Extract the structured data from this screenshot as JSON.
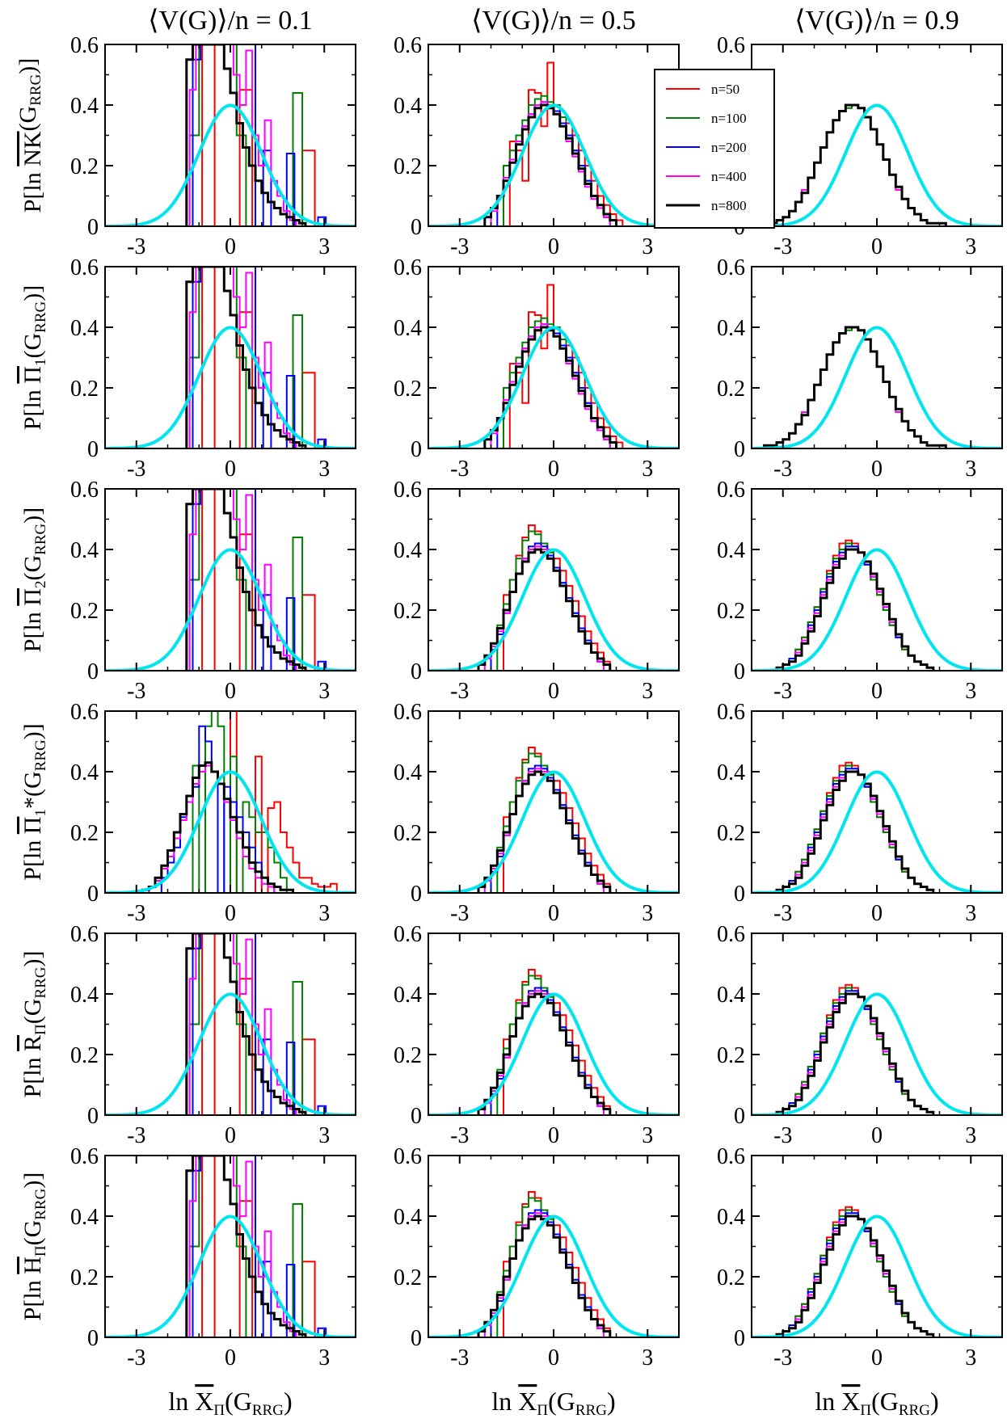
{
  "figure": {
    "column_titles": [
      "⟨V(G)⟩/n = 0.1",
      "⟨V(G)⟩/n = 0.5",
      "⟨V(G)⟩/n = 0.9"
    ],
    "row_labels": [
      {
        "pre": "P[ln ",
        "sym": "NK",
        "sub1": "",
        "post": "(G",
        "sub2": "RRG",
        "end": ")]"
      },
      {
        "pre": "P[ln ",
        "sym": "Π",
        "sub1": "1",
        "post": "(G",
        "sub2": "RRG",
        "end": ")]"
      },
      {
        "pre": "P[ln ",
        "sym": "Π",
        "sub1": "2",
        "post": "(G",
        "sub2": "RRG",
        "end": ")]"
      },
      {
        "pre": "P[ln ",
        "sym": "Π",
        "sub1": "1",
        "post": "*(G",
        "sub2": "RRG",
        "end": ")]"
      },
      {
        "pre": "P[ln ",
        "sym": "R",
        "sub1": "Π",
        "post": "(G",
        "sub2": "RRG",
        "end": ")]"
      },
      {
        "pre": "P[ln ",
        "sym": "H",
        "sub1": "Π",
        "post": "(G",
        "sub2": "RRG",
        "end": ")]"
      }
    ],
    "xlabel": {
      "pre": "ln ",
      "sym": "X",
      "sub1": "Π",
      "post": "(G",
      "sub2": "RRG",
      "end": ")"
    }
  },
  "chart_data": {
    "type": "histogram",
    "layout": "6 rows x 3 columns",
    "xlim": [
      -4,
      4
    ],
    "ylim": [
      0,
      0.6
    ],
    "xticks": [
      -3,
      0,
      3
    ],
    "yticks": [
      0,
      0.2,
      0.4,
      0.6
    ],
    "xtick_labels": [
      "-3",
      "0",
      "3"
    ],
    "ytick_labels": [
      "0",
      "0.2",
      "0.4",
      "0.6"
    ],
    "legend": {
      "placement": "top-right of row 1, column 2",
      "entries": [
        "n=50",
        "n=100",
        "n=200",
        "n=400",
        "n=800"
      ]
    },
    "series_colors": {
      "n=50": "#ff0000",
      "n=100": "#008000",
      "n=200": "#0000ff",
      "n=400": "#ff00ff",
      "n=800": "#000000"
    },
    "reference_curve": {
      "type": "standard normal density",
      "mean": 0,
      "std": 1,
      "color": "#00e5ee"
    },
    "histograms": {
      "narrow_0.1": {
        "n=50": {
          "x0": -1.3,
          "w": 0.4,
          "v": [
            0.0,
            0.9,
            0.0,
            0.0,
            0.45,
            0.0,
            0.0,
            0.0,
            0.0,
            0.25,
            0.0,
            0.0
          ]
        },
        "n=100": {
          "x0": -1.3,
          "w": 0.3,
          "v": [
            0.3,
            0.6,
            0.9,
            0.8,
            0.7,
            0.3,
            0.0,
            0.0,
            0.0,
            0.0,
            0.0,
            0.44
          ]
        },
        "n=200": {
          "x0": -1.2,
          "w": 0.25,
          "v": [
            0.55,
            0.75,
            0.7,
            0.6,
            0.8,
            0.6,
            0.9,
            0.8,
            0.0,
            0.25,
            0.0,
            0.0,
            0.24,
            0.0,
            0.0,
            0.0,
            0.03
          ]
        },
        "n=400": {
          "x0": -1.3,
          "w": 0.2,
          "v": [
            0.45,
            0.6,
            0.7,
            0.75,
            0.8,
            0.8,
            0.7,
            0.5,
            0.4,
            0.58,
            0.3,
            0.2,
            0.35,
            0.15,
            0.1,
            0.05,
            0.02
          ]
        },
        "n=800": {
          "x0": -1.4,
          "w": 0.2,
          "v": [
            0.55,
            0.72,
            0.74,
            0.72,
            0.68,
            0.6,
            0.52,
            0.44,
            0.34,
            0.26,
            0.2,
            0.15,
            0.11,
            0.08,
            0.06,
            0.04,
            0.03,
            0.02,
            0.01
          ]
        }
      },
      "mixed_0.1": {
        "n=50": {
          "x0": -2.6,
          "w": 0.2,
          "v": [
            0.0,
            0.0,
            0.0,
            0.0,
            0.0,
            0.0,
            0.0,
            0.0,
            0.0,
            0.0,
            0.0,
            0.0,
            0.0,
            0.8,
            0.0,
            0.0,
            0.0,
            0.45,
            0.0,
            0.28,
            0.3,
            0.2,
            0.15,
            0.1,
            0.05,
            0.05,
            0.03,
            0.02,
            0.02,
            0.03
          ]
        },
        "n=100": {
          "x0": -2.0,
          "w": 0.2,
          "v": [
            0.0,
            0.0,
            0.0,
            0.0,
            0.42,
            0.0,
            0.55,
            0.6,
            0.55,
            0.0,
            0.45,
            0.0,
            0.3,
            0.25,
            0.2,
            0.2,
            0.15,
            0.1,
            0.05
          ]
        },
        "n=200": {
          "x0": -2.2,
          "w": 0.2,
          "v": [
            0.05,
            0.1,
            0.15,
            0.25,
            0.3,
            0.35,
            0.55,
            0.5,
            0.4,
            0.0,
            0.35,
            0.3,
            0.25,
            0.2,
            0.15,
            0.1,
            0.05,
            0.03
          ]
        },
        "n=400": {
          "x0": -2.6,
          "w": 0.2,
          "v": [
            0.02,
            0.04,
            0.08,
            0.12,
            0.18,
            0.24,
            0.3,
            0.36,
            0.4,
            0.42,
            0.4,
            0.36,
            0.3,
            0.24,
            0.18,
            0.12,
            0.08,
            0.05,
            0.03,
            0.02
          ]
        },
        "n=800": {
          "x0": -2.8,
          "w": 0.2,
          "v": [
            0.01,
            0.02,
            0.05,
            0.09,
            0.14,
            0.2,
            0.26,
            0.32,
            0.38,
            0.42,
            0.43,
            0.4,
            0.36,
            0.31,
            0.25,
            0.2,
            0.15,
            0.1,
            0.07,
            0.05,
            0.03,
            0.02,
            0.01,
            0.01
          ]
        }
      },
      "mid_0.5_rough": {
        "n=50": {
          "x0": -1.6,
          "w": 0.2,
          "v": [
            0.0,
            0.28,
            0.25,
            0.15,
            0.45,
            0.44,
            0.33,
            0.54,
            0.38,
            0.36,
            0.34,
            0.3,
            0.25,
            0.2,
            0.15,
            0.1,
            0.07,
            0.04,
            0.02
          ]
        },
        "n=100": {
          "x0": -1.6,
          "w": 0.2,
          "v": [
            0.2,
            0.25,
            0.3,
            0.35,
            0.4,
            0.42,
            0.43,
            0.41,
            0.4,
            0.36,
            0.3,
            0.25,
            0.2,
            0.15,
            0.1,
            0.06,
            0.03
          ]
        },
        "n=200": {
          "x0": -1.8,
          "w": 0.2,
          "v": [
            0.1,
            0.15,
            0.22,
            0.28,
            0.33,
            0.37,
            0.4,
            0.41,
            0.4,
            0.38,
            0.34,
            0.3,
            0.25,
            0.2,
            0.15,
            0.1,
            0.06,
            0.03
          ]
        },
        "n=400": {
          "x0": -2.0,
          "w": 0.2,
          "v": [
            0.05,
            0.1,
            0.16,
            0.22,
            0.28,
            0.33,
            0.37,
            0.4,
            0.41,
            0.4,
            0.37,
            0.33,
            0.28,
            0.23,
            0.18,
            0.13,
            0.09,
            0.06,
            0.03
          ]
        },
        "n=800": {
          "x0": -2.2,
          "w": 0.2,
          "v": [
            0.03,
            0.06,
            0.1,
            0.15,
            0.21,
            0.27,
            0.32,
            0.36,
            0.39,
            0.4,
            0.39,
            0.37,
            0.33,
            0.29,
            0.24,
            0.19,
            0.14,
            0.1,
            0.07,
            0.04,
            0.02
          ]
        }
      },
      "mid_0.5_smooth": {
        "n=50": {
          "x0": -1.6,
          "w": 0.2,
          "v": [
            0.25,
            0.3,
            0.38,
            0.44,
            0.48,
            0.46,
            0.42,
            0.4,
            0.37,
            0.33,
            0.28,
            0.23,
            0.18,
            0.13,
            0.09,
            0.06,
            0.03
          ]
        },
        "n=100": {
          "x0": -1.8,
          "w": 0.2,
          "v": [
            0.15,
            0.22,
            0.3,
            0.37,
            0.43,
            0.46,
            0.45,
            0.42,
            0.39,
            0.34,
            0.29,
            0.24,
            0.19,
            0.14,
            0.1,
            0.06,
            0.03
          ]
        },
        "n=200": {
          "x0": -2.0,
          "w": 0.2,
          "v": [
            0.07,
            0.12,
            0.19,
            0.26,
            0.32,
            0.37,
            0.41,
            0.42,
            0.41,
            0.38,
            0.34,
            0.29,
            0.24,
            0.19,
            0.14,
            0.1,
            0.06,
            0.03
          ]
        },
        "n=400": {
          "x0": -2.2,
          "w": 0.2,
          "v": [
            0.04,
            0.08,
            0.13,
            0.19,
            0.26,
            0.32,
            0.37,
            0.4,
            0.41,
            0.4,
            0.37,
            0.33,
            0.28,
            0.23,
            0.18,
            0.13,
            0.09,
            0.06,
            0.03
          ]
        },
        "n=800": {
          "x0": -2.4,
          "w": 0.2,
          "v": [
            0.02,
            0.05,
            0.09,
            0.14,
            0.2,
            0.26,
            0.32,
            0.36,
            0.39,
            0.4,
            0.39,
            0.37,
            0.33,
            0.28,
            0.23,
            0.18,
            0.13,
            0.09,
            0.06,
            0.04,
            0.02
          ]
        }
      },
      "wide_0.9": {
        "n=50": {
          "x0": -3.2,
          "w": 0.2,
          "v": [
            0.01,
            0.02,
            0.04,
            0.07,
            0.11,
            0.16,
            0.21,
            0.27,
            0.33,
            0.38,
            0.42,
            0.43,
            0.42,
            0.39,
            0.35,
            0.3,
            0.25,
            0.2,
            0.15,
            0.11,
            0.07,
            0.05,
            0.03,
            0.02,
            0.01
          ]
        },
        "n=100": {
          "x0": -3.2,
          "w": 0.2,
          "v": [
            0.01,
            0.02,
            0.04,
            0.07,
            0.11,
            0.16,
            0.21,
            0.27,
            0.32,
            0.37,
            0.4,
            0.42,
            0.41,
            0.39,
            0.35,
            0.3,
            0.25,
            0.2,
            0.15,
            0.11,
            0.07,
            0.05,
            0.03,
            0.02,
            0.01
          ]
        },
        "n=200": {
          "x0": -3.2,
          "w": 0.2,
          "v": [
            0.01,
            0.02,
            0.04,
            0.06,
            0.1,
            0.15,
            0.2,
            0.26,
            0.31,
            0.36,
            0.39,
            0.41,
            0.41,
            0.39,
            0.35,
            0.31,
            0.26,
            0.21,
            0.16,
            0.11,
            0.08,
            0.05,
            0.03,
            0.02,
            0.01
          ]
        },
        "n=400": {
          "x0": -3.2,
          "w": 0.2,
          "v": [
            0.01,
            0.02,
            0.03,
            0.06,
            0.1,
            0.14,
            0.19,
            0.25,
            0.3,
            0.35,
            0.38,
            0.4,
            0.4,
            0.39,
            0.36,
            0.31,
            0.26,
            0.21,
            0.16,
            0.12,
            0.08,
            0.05,
            0.03,
            0.02,
            0.01
          ]
        },
        "n=800": {
          "x0": -3.2,
          "w": 0.2,
          "v": [
            0.01,
            0.02,
            0.03,
            0.05,
            0.09,
            0.13,
            0.18,
            0.24,
            0.29,
            0.34,
            0.37,
            0.4,
            0.4,
            0.39,
            0.36,
            0.32,
            0.27,
            0.22,
            0.17,
            0.12,
            0.08,
            0.05,
            0.03,
            0.02,
            0.01
          ]
        }
      },
      "gauss_0.9": {
        "n=50": {
          "x0": -3.6,
          "w": 0.2,
          "v": [
            0.01,
            0.01,
            0.02,
            0.03,
            0.05,
            0.08,
            0.11,
            0.16,
            0.21,
            0.26,
            0.31,
            0.35,
            0.38,
            0.4,
            0.4,
            0.39,
            0.36,
            0.32,
            0.27,
            0.22,
            0.17,
            0.13,
            0.09,
            0.06,
            0.04,
            0.02,
            0.01,
            0.01,
            0.01
          ]
        },
        "n=100": {
          "x0": -3.6,
          "w": 0.2,
          "v": [
            0.01,
            0.01,
            0.02,
            0.03,
            0.05,
            0.08,
            0.12,
            0.16,
            0.21,
            0.26,
            0.31,
            0.35,
            0.38,
            0.39,
            0.4,
            0.39,
            0.36,
            0.32,
            0.27,
            0.22,
            0.17,
            0.13,
            0.09,
            0.06,
            0.04,
            0.02,
            0.01,
            0.01,
            0.01
          ]
        },
        "n=200": {
          "x0": -3.6,
          "w": 0.2,
          "v": [
            0.01,
            0.01,
            0.02,
            0.03,
            0.05,
            0.08,
            0.11,
            0.16,
            0.21,
            0.26,
            0.31,
            0.35,
            0.38,
            0.4,
            0.4,
            0.39,
            0.36,
            0.32,
            0.27,
            0.22,
            0.17,
            0.13,
            0.09,
            0.06,
            0.04,
            0.02,
            0.01,
            0.01,
            0.01
          ]
        },
        "n=400": {
          "x0": -3.6,
          "w": 0.2,
          "v": [
            0.01,
            0.01,
            0.02,
            0.03,
            0.05,
            0.08,
            0.12,
            0.16,
            0.21,
            0.26,
            0.31,
            0.35,
            0.38,
            0.4,
            0.4,
            0.39,
            0.36,
            0.32,
            0.27,
            0.22,
            0.17,
            0.12,
            0.09,
            0.06,
            0.04,
            0.02,
            0.01,
            0.01,
            0.01
          ]
        },
        "n=800": {
          "x0": -3.6,
          "w": 0.2,
          "v": [
            0.01,
            0.01,
            0.02,
            0.03,
            0.05,
            0.08,
            0.11,
            0.16,
            0.21,
            0.26,
            0.31,
            0.35,
            0.38,
            0.4,
            0.4,
            0.39,
            0.36,
            0.32,
            0.27,
            0.22,
            0.17,
            0.13,
            0.09,
            0.06,
            0.04,
            0.02,
            0.01,
            0.01,
            0.01
          ]
        }
      }
    },
    "panels": [
      {
        "row": 1,
        "col": 1,
        "hist": "narrow_0.1"
      },
      {
        "row": 1,
        "col": 2,
        "hist": "mid_0.5_rough"
      },
      {
        "row": 1,
        "col": 3,
        "hist": "gauss_0.9"
      },
      {
        "row": 2,
        "col": 1,
        "hist": "narrow_0.1"
      },
      {
        "row": 2,
        "col": 2,
        "hist": "mid_0.5_rough"
      },
      {
        "row": 2,
        "col": 3,
        "hist": "gauss_0.9"
      },
      {
        "row": 3,
        "col": 1,
        "hist": "narrow_0.1"
      },
      {
        "row": 3,
        "col": 2,
        "hist": "mid_0.5_smooth"
      },
      {
        "row": 3,
        "col": 3,
        "hist": "wide_0.9"
      },
      {
        "row": 4,
        "col": 1,
        "hist": "mixed_0.1"
      },
      {
        "row": 4,
        "col": 2,
        "hist": "mid_0.5_smooth"
      },
      {
        "row": 4,
        "col": 3,
        "hist": "wide_0.9"
      },
      {
        "row": 5,
        "col": 1,
        "hist": "narrow_0.1"
      },
      {
        "row": 5,
        "col": 2,
        "hist": "mid_0.5_smooth"
      },
      {
        "row": 5,
        "col": 3,
        "hist": "wide_0.9"
      },
      {
        "row": 6,
        "col": 1,
        "hist": "narrow_0.1"
      },
      {
        "row": 6,
        "col": 2,
        "hist": "mid_0.5_smooth"
      },
      {
        "row": 6,
        "col": 3,
        "hist": "wide_0.9"
      }
    ]
  }
}
